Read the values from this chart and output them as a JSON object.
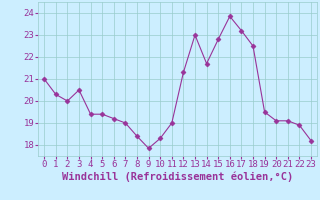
{
  "x": [
    0,
    1,
    2,
    3,
    4,
    5,
    6,
    7,
    8,
    9,
    10,
    11,
    12,
    13,
    14,
    15,
    16,
    17,
    18,
    19,
    20,
    21,
    22,
    23
  ],
  "y": [
    21.0,
    20.3,
    20.0,
    20.5,
    19.4,
    19.4,
    19.2,
    19.0,
    18.4,
    17.85,
    18.3,
    19.0,
    21.3,
    23.0,
    21.7,
    22.8,
    23.85,
    23.2,
    22.5,
    19.5,
    19.1,
    19.1,
    18.9,
    18.2
  ],
  "line_color": "#993399",
  "marker": "D",
  "marker_size": 2.5,
  "bg_color": "#cceeff",
  "grid_color": "#99cccc",
  "xlabel": "Windchill (Refroidissement éolien,°C)",
  "ylim": [
    17.5,
    24.5
  ],
  "xlim": [
    -0.5,
    23.5
  ],
  "yticks": [
    18,
    19,
    20,
    21,
    22,
    23,
    24
  ],
  "xtick_labels": [
    "0",
    "1",
    "2",
    "3",
    "4",
    "5",
    "6",
    "7",
    "8",
    "9",
    "10",
    "11",
    "12",
    "13",
    "14",
    "15",
    "16",
    "17",
    "18",
    "19",
    "20",
    "21",
    "22",
    "23"
  ],
  "tick_color": "#993399",
  "label_color": "#993399",
  "tick_fontsize": 6.5,
  "label_fontsize": 7.5
}
